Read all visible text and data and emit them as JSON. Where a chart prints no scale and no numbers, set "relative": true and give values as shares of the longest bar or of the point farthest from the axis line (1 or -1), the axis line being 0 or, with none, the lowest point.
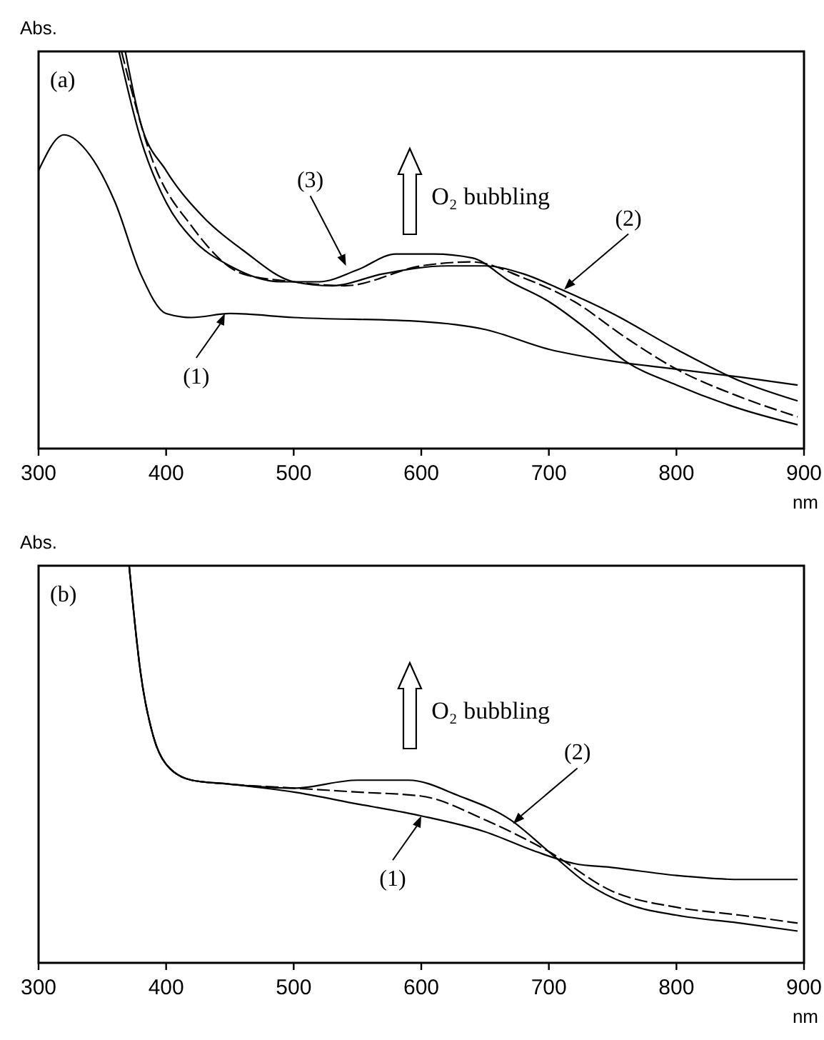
{
  "chart_data": [
    {
      "type": "line",
      "title": "(a)",
      "xlabel": "nm",
      "ylabel": "Abs.",
      "relative": true,
      "xlim": [
        300,
        900
      ],
      "xticks": [
        300,
        400,
        500,
        600,
        700,
        800,
        900
      ],
      "series": [
        {
          "color": "#000000",
          "line_style": "solid",
          "x": [
            300,
            320,
            340,
            360,
            380,
            400,
            420,
            450,
            500,
            600,
            650,
            700,
            750,
            800,
            850,
            895
          ],
          "values": [
            0.7,
            0.79,
            0.74,
            0.62,
            0.44,
            0.34,
            0.33,
            0.34,
            0.33,
            0.32,
            0.3,
            0.25,
            0.22,
            0.2,
            0.18,
            0.16
          ]
        },
        {
          "color": "#000000",
          "line_style": "dashed",
          "x": [
            365,
            390,
            420,
            460,
            500,
            540,
            600,
            640,
            680,
            720,
            760,
            800,
            850,
            895
          ],
          "values": [
            1,
            0.72,
            0.56,
            0.44,
            0.42,
            0.41,
            0.46,
            0.47,
            0.43,
            0.37,
            0.28,
            0.2,
            0.13,
            0.08
          ]
        },
        {
          "color": "#000000",
          "line_style": "solid",
          "x": [
            363,
            380,
            400,
            420,
            450,
            490,
            520,
            550,
            580,
            610,
            640,
            670,
            700,
            730,
            760,
            800,
            850,
            895
          ],
          "values": [
            1,
            0.78,
            0.62,
            0.53,
            0.46,
            0.42,
            0.42,
            0.45,
            0.49,
            0.49,
            0.48,
            0.42,
            0.37,
            0.3,
            0.22,
            0.16,
            0.1,
            0.06
          ]
        },
        {
          "color": "#000000",
          "line_style": "solid",
          "x": [
            368,
            380,
            400,
            430,
            460,
            500,
            530,
            570,
            620,
            650,
            680,
            710,
            750,
            800,
            850,
            895
          ],
          "values": [
            1,
            0.82,
            0.7,
            0.58,
            0.5,
            0.42,
            0.41,
            0.44,
            0.46,
            0.46,
            0.44,
            0.4,
            0.34,
            0.25,
            0.17,
            0.12
          ]
        }
      ],
      "annotations": [
        {
          "text": "(1)",
          "x": 446,
          "y": 0.34
        },
        {
          "text": "(3)",
          "x": 541,
          "y": 0.46
        },
        {
          "text": "(2)",
          "x": 712,
          "y": 0.4
        },
        "O₂ bubbling"
      ]
    },
    {
      "type": "line",
      "title": "(b)",
      "xlabel": "nm",
      "ylabel": "Abs.",
      "relative": true,
      "xlim": [
        300,
        900
      ],
      "xticks": [
        300,
        400,
        500,
        600,
        700,
        800,
        900
      ],
      "series": [
        {
          "color": "#000000",
          "line_style": "solid",
          "x": [
            371,
            380,
            390,
            400,
            420,
            450,
            500,
            550,
            600,
            650,
            690,
            720,
            750,
            800,
            850,
            895
          ],
          "values": [
            1,
            0.73,
            0.57,
            0.5,
            0.46,
            0.45,
            0.43,
            0.4,
            0.37,
            0.33,
            0.28,
            0.25,
            0.24,
            0.22,
            0.21,
            0.21
          ]
        },
        {
          "color": "#000000",
          "line_style": "dashed",
          "x": [
            371,
            380,
            390,
            400,
            420,
            450,
            500,
            550,
            600,
            650,
            700,
            750,
            800,
            850,
            895
          ],
          "values": [
            1,
            0.73,
            0.57,
            0.5,
            0.46,
            0.45,
            0.44,
            0.43,
            0.42,
            0.36,
            0.28,
            0.18,
            0.14,
            0.12,
            0.1
          ]
        },
        {
          "color": "#000000",
          "line_style": "solid",
          "x": [
            371,
            380,
            390,
            400,
            420,
            450,
            500,
            550,
            590,
            630,
            670,
            700,
            730,
            760,
            800,
            850,
            895
          ],
          "values": [
            1,
            0.73,
            0.57,
            0.5,
            0.46,
            0.45,
            0.44,
            0.46,
            0.46,
            0.42,
            0.36,
            0.28,
            0.2,
            0.15,
            0.12,
            0.1,
            0.08
          ]
        }
      ],
      "annotations": [
        {
          "text": "(1)",
          "x": 600,
          "y": 0.37
        },
        {
          "text": "(2)",
          "x": 672,
          "y": 0.35
        },
        "O₂ bubbling"
      ]
    }
  ]
}
